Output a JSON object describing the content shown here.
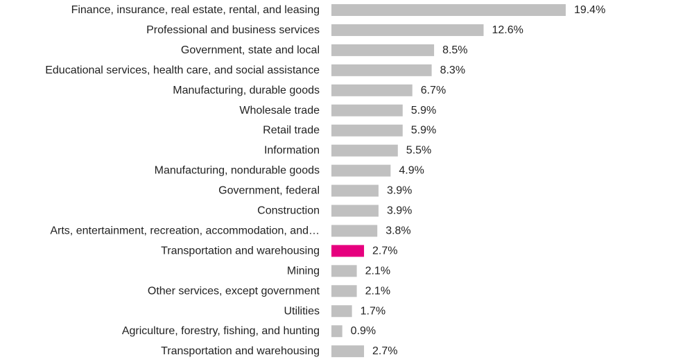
{
  "chart_data": {
    "type": "bar",
    "orientation": "horizontal",
    "title": "",
    "xlabel": "",
    "ylabel": "",
    "xlim": [
      0,
      20
    ],
    "grid": false,
    "legend": "none",
    "categories": [
      "Finance, insurance, real estate, rental, and leasing",
      "Professional and business services",
      "Government, state and local",
      "Educational services, health care, and social assistance",
      "Manufacturing, durable goods",
      "Wholesale trade",
      "Retail trade",
      "Information",
      "Manufacturing, nondurable goods",
      "Government, federal",
      "Construction",
      "Arts, entertainment, recreation, accommodation, and…",
      "Transportation and warehousing",
      "Mining",
      "Other services, except government",
      "Utilities",
      "Agriculture, forestry, fishing, and hunting",
      "Transportation and warehousing"
    ],
    "values": [
      19.4,
      12.6,
      8.5,
      8.3,
      6.7,
      5.9,
      5.9,
      5.5,
      4.9,
      3.9,
      3.9,
      3.8,
      2.7,
      2.1,
      2.1,
      1.7,
      0.9,
      2.7
    ],
    "value_labels": [
      "19.4%",
      "12.6%",
      "8.5%",
      "8.3%",
      "6.7%",
      "5.9%",
      "5.9%",
      "5.5%",
      "4.9%",
      "3.9%",
      "3.9%",
      "3.8%",
      "2.7%",
      "2.1%",
      "2.1%",
      "1.7%",
      "0.9%",
      "2.7%"
    ],
    "highlight_index": 12,
    "colors": {
      "bar": "#c0c0c0",
      "highlight": "#e6007e",
      "text": "#222222"
    }
  }
}
